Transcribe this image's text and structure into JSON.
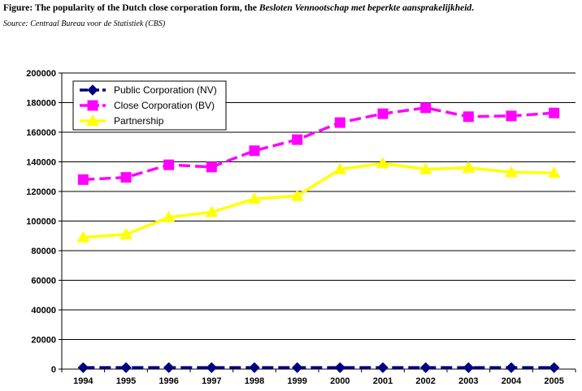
{
  "caption": {
    "prefix": "Figure: The popularity of the Dutch close corporation form, the ",
    "italic": "Besloten Vennootschap met beperkte aansprakelijkheid",
    "suffix": "."
  },
  "source": "Source: Centraal Bureau voor de Statistiek (CBS)",
  "chart_data": {
    "type": "line",
    "title": "",
    "xlabel": "",
    "ylabel": "",
    "categories": [
      "1994",
      "1995",
      "1996",
      "1997",
      "1998",
      "1999",
      "2000",
      "2001",
      "2002",
      "2003",
      "2004",
      "2005"
    ],
    "ylim": [
      0,
      200000
    ],
    "yticks": [
      0,
      20000,
      40000,
      60000,
      80000,
      100000,
      120000,
      140000,
      160000,
      180000,
      200000
    ],
    "ytick_labels": [
      "0",
      "20000",
      "40000",
      "60000",
      "80000",
      "100000",
      "120000",
      "140000",
      "160000",
      "180000",
      "200000"
    ],
    "grid": true,
    "legend": "top-left",
    "series": [
      {
        "name": "Public Corporation (NV)",
        "color": "#000080",
        "marker": "diamond",
        "dash": true,
        "values": [
          1000,
          1000,
          1000,
          1000,
          1000,
          1000,
          1000,
          1000,
          1000,
          1000,
          1000,
          1000
        ]
      },
      {
        "name": "Close Corporation (BV)",
        "color": "#ff00ff",
        "marker": "square",
        "dash": true,
        "values": [
          128000,
          129500,
          138000,
          136500,
          147500,
          155000,
          166500,
          172500,
          176500,
          170500,
          171000,
          173000
        ]
      },
      {
        "name": "Partnership",
        "color": "#ffff00",
        "marker": "triangle",
        "dash": false,
        "values": [
          89000,
          91000,
          102500,
          106000,
          115000,
          117000,
          135000,
          139000,
          135000,
          136000,
          133000,
          132500
        ]
      }
    ]
  }
}
